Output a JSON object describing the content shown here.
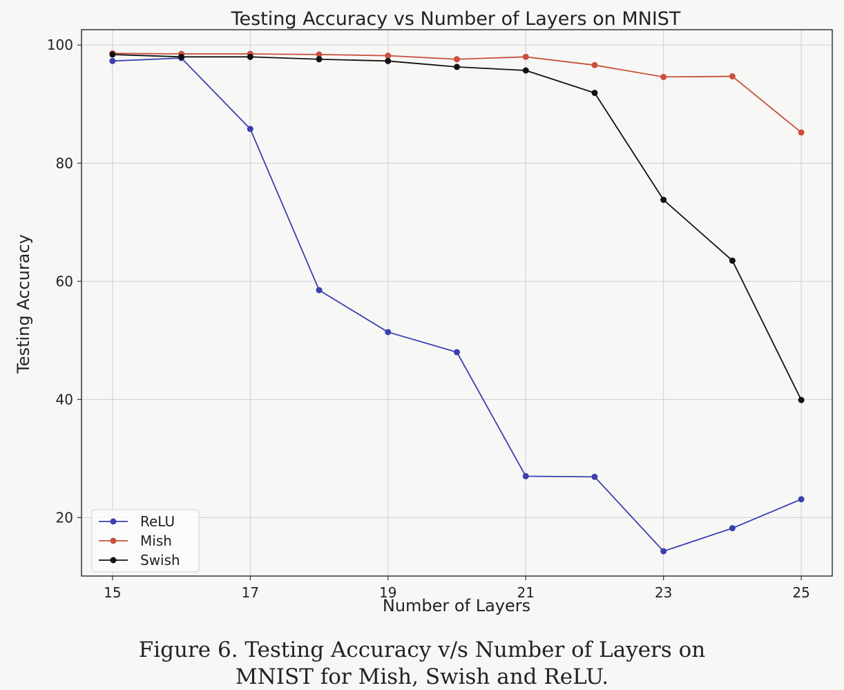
{
  "caption": {
    "line1": "Figure 6. Testing Accuracy v/s Number of Layers on",
    "line2": "MNIST for Mish, Swish and ReLU."
  },
  "chart_data": {
    "type": "line",
    "title": "Testing Accuracy vs Number of Layers on MNIST",
    "xlabel": "Number of Layers",
    "ylabel": "Testing Accuracy",
    "x": [
      15,
      16,
      17,
      18,
      19,
      20,
      21,
      22,
      23,
      24,
      25
    ],
    "xticks": [
      15,
      17,
      19,
      21,
      23,
      25
    ],
    "yticks": [
      20,
      40,
      60,
      80,
      100
    ],
    "xlim": [
      14.55,
      25.45
    ],
    "ylim": [
      10.1,
      102.6
    ],
    "grid": true,
    "legend_position": "lower-left",
    "series": [
      {
        "name": "ReLU",
        "color": "#3a3fb0",
        "values": [
          97.3,
          97.8,
          85.8,
          58.5,
          51.4,
          48.0,
          27.0,
          26.9,
          14.3,
          18.2,
          23.1
        ]
      },
      {
        "name": "Mish",
        "color": "#c8503c",
        "values": [
          98.6,
          98.5,
          98.5,
          98.4,
          98.2,
          97.6,
          98.0,
          96.6,
          94.6,
          94.7,
          85.2
        ]
      },
      {
        "name": "Swish",
        "color": "#111111",
        "values": [
          98.4,
          98.0,
          98.0,
          97.6,
          97.3,
          96.3,
          95.7,
          91.9,
          73.8,
          63.5,
          39.9
        ]
      }
    ]
  }
}
